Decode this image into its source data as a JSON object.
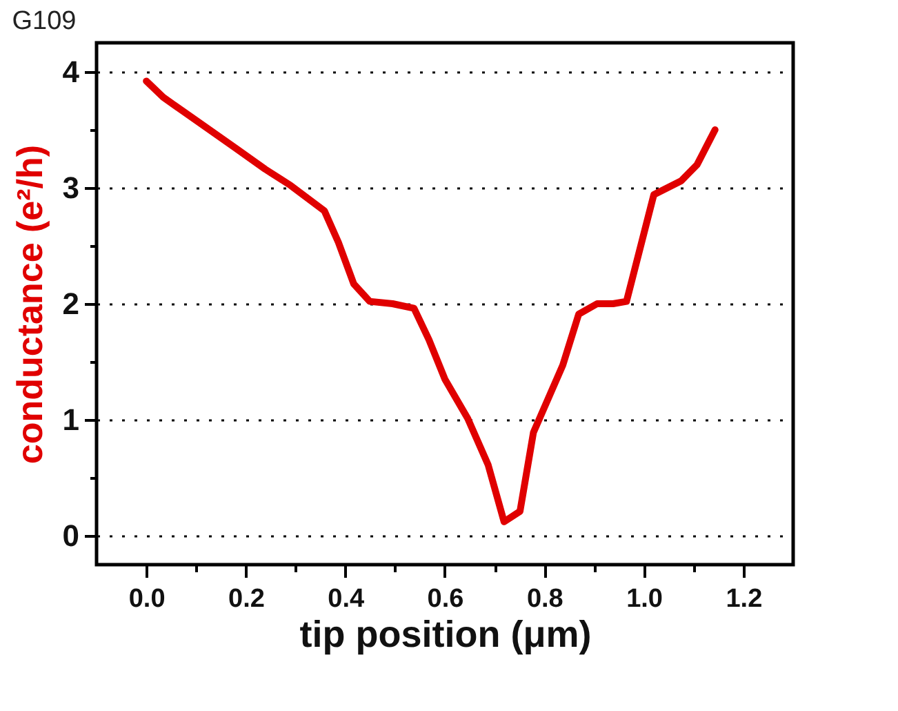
{
  "chart_data": {
    "type": "line",
    "title": "G109",
    "xlabel": "tip position (μm)",
    "ylabel": "conductance (e²/h)",
    "x": [
      0,
      0.034,
      0.107,
      0.18,
      0.239,
      0.29,
      0.358,
      0.386,
      0.417,
      0.449,
      0.495,
      0.538,
      0.568,
      0.6,
      0.646,
      0.687,
      0.719,
      0.751,
      0.778,
      0.837,
      0.869,
      0.906,
      0.938,
      0.965,
      1.02,
      1.075,
      1.107,
      1.143
    ],
    "series": [
      {
        "color": "#e00000",
        "values": [
          3.92,
          3.78,
          3.56,
          3.34,
          3.16,
          3.02,
          2.8,
          2.53,
          2.17,
          2.02,
          2.0,
          1.96,
          1.69,
          1.35,
          1.01,
          0.61,
          0.12,
          0.21,
          0.89,
          1.47,
          1.91,
          2.0,
          2.0,
          2.02,
          2.94,
          3.06,
          3.2,
          3.5
        ]
      }
    ],
    "xlim": [
      -0.1,
      1.3
    ],
    "xticks": [
      {
        "value": 0,
        "label": "0.0"
      },
      {
        "value": 0.1,
        "label": null
      },
      {
        "value": 0.2,
        "label": "0.2"
      },
      {
        "value": 0.3,
        "label": null
      },
      {
        "value": 0.4,
        "label": "0.4"
      },
      {
        "value": 0.5,
        "label": null
      },
      {
        "value": 0.6,
        "label": "0.6"
      },
      {
        "value": 0.7,
        "label": null
      },
      {
        "value": 0.8,
        "label": "0.8"
      },
      {
        "value": 0.9,
        "label": null
      },
      {
        "value": 1.0,
        "label": "1.0"
      },
      {
        "value": 1.1,
        "label": null
      },
      {
        "value": 1.2,
        "label": "1.2"
      }
    ],
    "ylim": [
      -0.25,
      4.25
    ],
    "yticks": [
      0,
      {
        "value": 0.5,
        "label": null
      },
      1,
      {
        "value": 1.5,
        "label": null
      },
      2,
      {
        "value": 2.5,
        "label": null
      },
      3,
      {
        "value": 3.5,
        "label": null
      },
      4
    ],
    "grid": "y",
    "line_style": "solid",
    "marker": "none"
  }
}
